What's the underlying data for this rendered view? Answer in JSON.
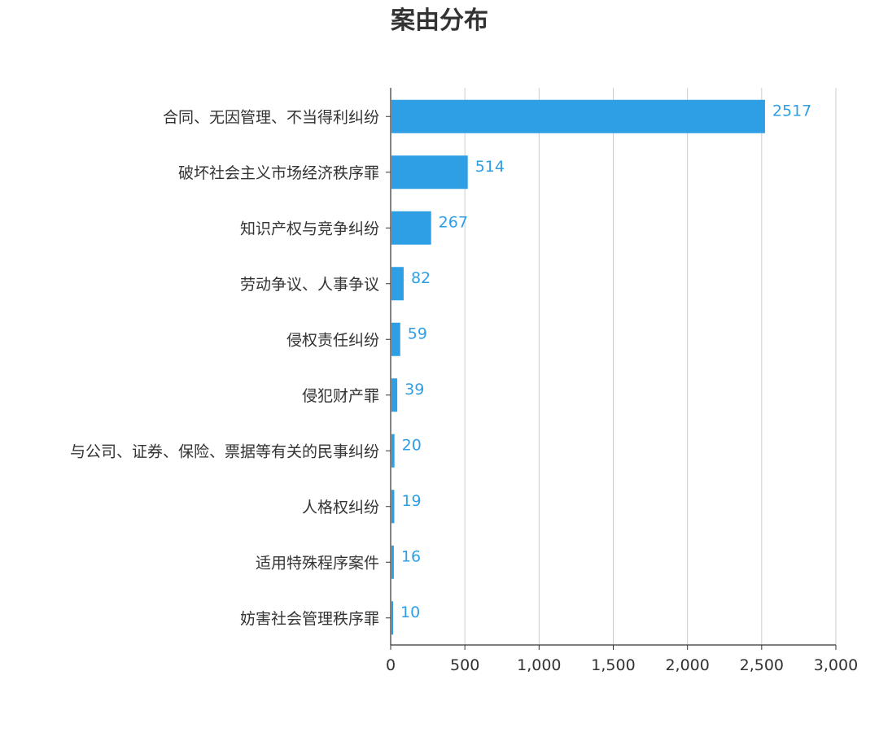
{
  "chart_data": {
    "type": "bar",
    "orientation": "horizontal",
    "title": "案由分布",
    "xlabel": "",
    "ylabel": "",
    "categories": [
      "合同、无因管理、不当得利纠纷",
      "破坏社会主义市场经济秩序罪",
      "知识产权与竞争纠纷",
      "劳动争议、人事争议",
      "侵权责任纠纷",
      "侵犯财产罪",
      "与公司、证券、保险、票据等有关的民事纠纷",
      "人格权纠纷",
      "适用特殊程序案件",
      "妨害社会管理秩序罪"
    ],
    "values": [
      2517,
      514,
      267,
      82,
      59,
      39,
      20,
      19,
      16,
      10
    ],
    "xlim": [
      0,
      3000
    ],
    "ticks": [
      0,
      500,
      1000,
      1500,
      2000,
      2500,
      3000
    ],
    "tick_labels": [
      "0",
      "500",
      "1,000",
      "1,500",
      "2,000",
      "2,500",
      "3,000"
    ],
    "grid": "vertical",
    "data_labels": true,
    "legend": "none"
  },
  "colors": {
    "bar": "#2f9fe5",
    "value_label": "#2f9fe5",
    "axis": "#333333",
    "grid": "#cccccc"
  }
}
